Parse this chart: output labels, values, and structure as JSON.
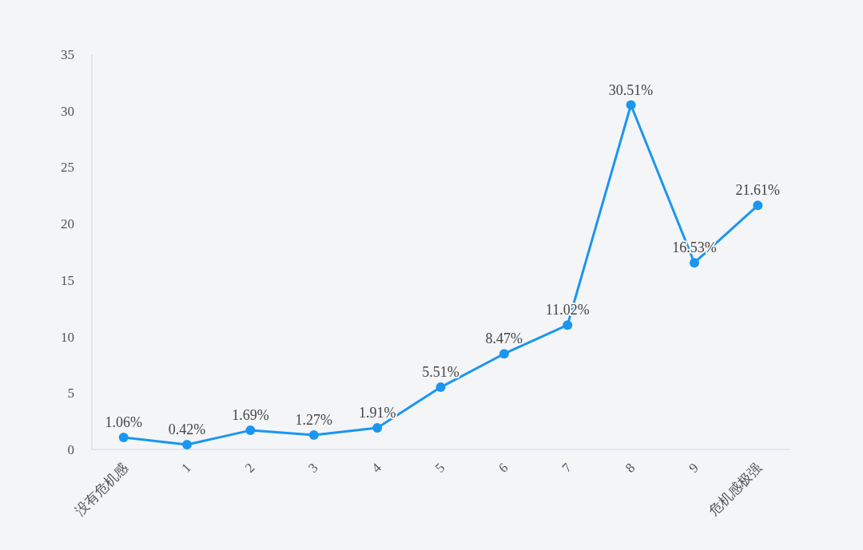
{
  "chart_data": {
    "type": "line",
    "categories": [
      "没有危机感",
      "1",
      "2",
      "3",
      "4",
      "5",
      "6",
      "7",
      "8",
      "9",
      "危机感极强"
    ],
    "series": [
      {
        "color": "#1a96f0",
        "values": [
          1.06,
          0.42,
          1.69,
          1.27,
          1.91,
          5.51,
          8.47,
          11.02,
          30.51,
          16.53,
          21.61
        ],
        "value_labels": [
          "1.06%",
          "0.42%",
          "1.69%",
          "1.27%",
          "1.91%",
          "5.51%",
          "8.47%",
          "11.02%",
          "30.51%",
          "16.53%",
          "21.61%"
        ]
      }
    ],
    "ylim": [
      0,
      35
    ],
    "yticks": [
      0,
      5,
      10,
      15,
      20,
      25,
      30,
      35
    ],
    "marker": "circle",
    "line_style": "solid",
    "grid": false
  }
}
